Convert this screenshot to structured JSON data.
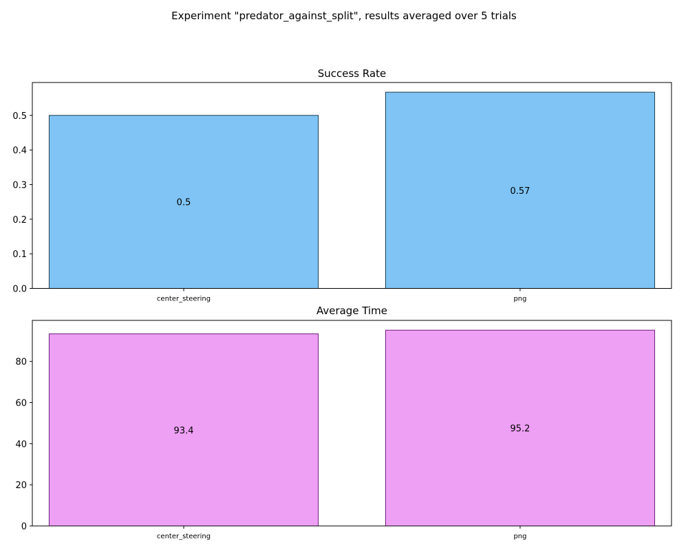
{
  "figure_title": "Experiment \"predator_against_split\", results averaged over 5 trials",
  "chart_data": [
    {
      "type": "bar",
      "title": "Success Rate",
      "xlabel": "",
      "ylabel": "",
      "categories": [
        "center_steering",
        "png"
      ],
      "values": [
        0.5,
        0.567
      ],
      "value_labels": [
        "0.5",
        "0.57"
      ],
      "ylim": [
        0,
        0.595
      ],
      "yticks": [
        0.0,
        0.1,
        0.2,
        0.3,
        0.4,
        0.5
      ],
      "ytick_labels": [
        "0.0",
        "0.1",
        "0.2",
        "0.3",
        "0.4",
        "0.5"
      ],
      "bar_color": "#7fc4f5",
      "edge_color": "#1c3b4c",
      "grid": false
    },
    {
      "type": "bar",
      "title": "Average Time",
      "xlabel": "",
      "ylabel": "",
      "categories": [
        "center_steering",
        "png"
      ],
      "values": [
        93.4,
        95.2
      ],
      "value_labels": [
        "93.4",
        "95.2"
      ],
      "ylim": [
        0,
        99.96
      ],
      "yticks": [
        0,
        20,
        40,
        60,
        80
      ],
      "ytick_labels": [
        "0",
        "20",
        "40",
        "60",
        "80"
      ],
      "bar_color": "#eea0f5",
      "edge_color": "#6a1a7a",
      "grid": false
    }
  ]
}
